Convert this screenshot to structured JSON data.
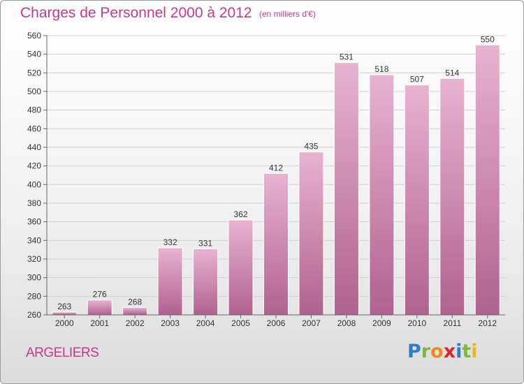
{
  "header": {
    "title": "Charges de Personnel 2000 à 2012",
    "subtitle": "(en milliers d'€)"
  },
  "footer": {
    "location": "ARGELIERS",
    "brand_letters": [
      "P",
      "r",
      "o",
      "x",
      "i",
      "t",
      "i"
    ],
    "brand_colors": [
      "#2e7fc1",
      "#7fb83a",
      "#f08a1c",
      "#d9262a",
      "#2e7fc1",
      "#7fb83a",
      "#f2b21a"
    ]
  },
  "colors": {
    "bar_light": "#e8b3d0",
    "bar_dark": "#b0628f",
    "accent": "#c4388f",
    "grid": "#cfcfcf",
    "axis_text": "#333333"
  },
  "chart_data": {
    "type": "bar",
    "categories": [
      "2000",
      "2001",
      "2002",
      "2003",
      "2004",
      "2005",
      "2006",
      "2007",
      "2008",
      "2009",
      "2010",
      "2011",
      "2012"
    ],
    "values": [
      263,
      276,
      268,
      332,
      331,
      362,
      412,
      435,
      531,
      518,
      507,
      514,
      550
    ],
    "ylim": [
      260,
      560
    ],
    "yticks": [
      260,
      280,
      300,
      320,
      340,
      360,
      380,
      400,
      420,
      440,
      460,
      480,
      500,
      520,
      540,
      560
    ],
    "grid": true,
    "title": "Charges de Personnel 2000 à 2012",
    "xlabel": "",
    "ylabel": ""
  }
}
